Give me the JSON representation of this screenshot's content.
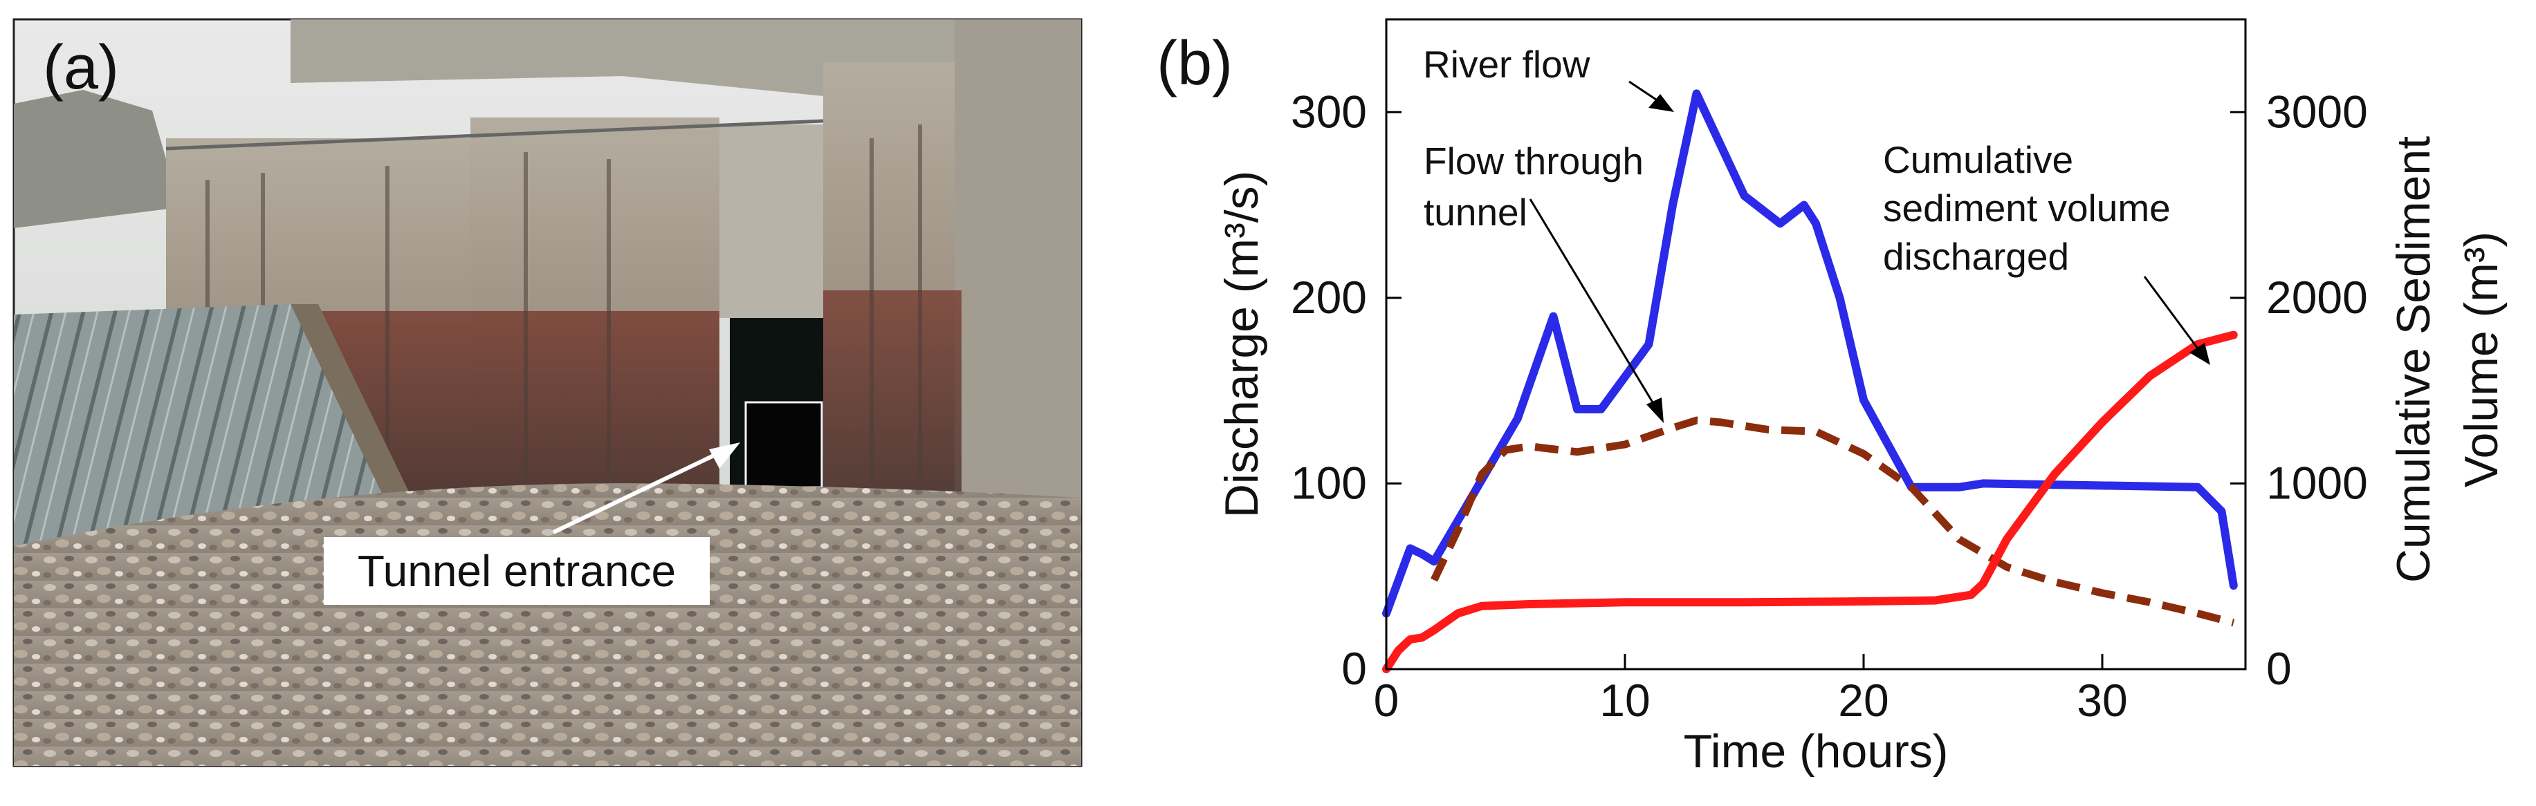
{
  "figure": {
    "panel_a_label": "(a)",
    "panel_b_label": "(b)",
    "photo_callout": "Tunnel entrance",
    "photo_description_icon": "dam-photo"
  },
  "colors": {
    "river_flow": "#2a2ae8",
    "tunnel_flow": "#8b2c0c",
    "sediment": "#ff1a1a"
  },
  "chart_data": {
    "type": "line",
    "title": "",
    "xlabel": "Time (hours)",
    "ylabel_left": "Discharge (m³/s)",
    "ylabel_right_line1": "Cumulative Sediment",
    "ylabel_right_line2": "Volume  (m³)",
    "xlim": [
      0,
      36
    ],
    "ylim_left": [
      0,
      350
    ],
    "ylim_right": [
      0,
      3500
    ],
    "xticks": [
      0,
      10,
      20,
      30
    ],
    "xtick_labels": [
      "0",
      "10",
      "20",
      "30"
    ],
    "yticks_left": [
      0,
      100,
      200,
      300
    ],
    "ytick_labels_left": [
      "0",
      "100",
      "200",
      "300"
    ],
    "yticks_right": [
      0,
      1000,
      2000,
      3000
    ],
    "ytick_labels_right": [
      "0",
      "1000",
      "2000",
      "3000"
    ],
    "series": [
      {
        "name": "River flow",
        "axis": "left",
        "style": "solid",
        "x": [
          0,
          1,
          1.5,
          2,
          5.5,
          7,
          8,
          9,
          11,
          12,
          13,
          15,
          16.5,
          17.5,
          18,
          19,
          20,
          22,
          24,
          25,
          34,
          35,
          35.5
        ],
        "values": [
          30,
          65,
          62,
          58,
          135,
          190,
          140,
          140,
          175,
          250,
          310,
          255,
          240,
          250,
          240,
          200,
          145,
          98,
          98,
          100,
          98,
          85,
          45
        ]
      },
      {
        "name": "Flow through tunnel",
        "axis": "left",
        "style": "dashed",
        "x": [
          2,
          3,
          4,
          5,
          6,
          8,
          10,
          12,
          13,
          14,
          16,
          18,
          20,
          22,
          24,
          26,
          28,
          30,
          32,
          34,
          35.5
        ],
        "values": [
          48,
          75,
          105,
          118,
          120,
          117,
          121,
          130,
          134,
          133,
          129,
          128,
          116,
          98,
          70,
          55,
          47,
          41,
          36,
          30,
          25
        ]
      },
      {
        "name": "Cumulative sediment volume discharged",
        "axis": "right",
        "style": "solid",
        "x": [
          0,
          0.5,
          1,
          1.5,
          2,
          3,
          4,
          6,
          10,
          15,
          20,
          23,
          24.5,
          25,
          26,
          28,
          30,
          32,
          34,
          35.5
        ],
        "values": [
          0,
          100,
          160,
          170,
          210,
          300,
          340,
          350,
          360,
          360,
          365,
          370,
          400,
          460,
          700,
          1050,
          1330,
          1580,
          1750,
          1800
        ]
      }
    ],
    "annotations": [
      {
        "text_lines": [
          "River flow"
        ],
        "target_series": "River flow",
        "target_x": 13,
        "target_y": 310
      },
      {
        "text_lines": [
          "Flow through",
          "tunnel"
        ],
        "target_series": "Flow through tunnel",
        "target_x": 12,
        "target_y": 130
      },
      {
        "text_lines": [
          "Cumulative",
          "sediment volume",
          "discharged"
        ],
        "target_series": "Cumulative sediment volume discharged",
        "target_x": 35,
        "target_y": 1780
      }
    ]
  }
}
